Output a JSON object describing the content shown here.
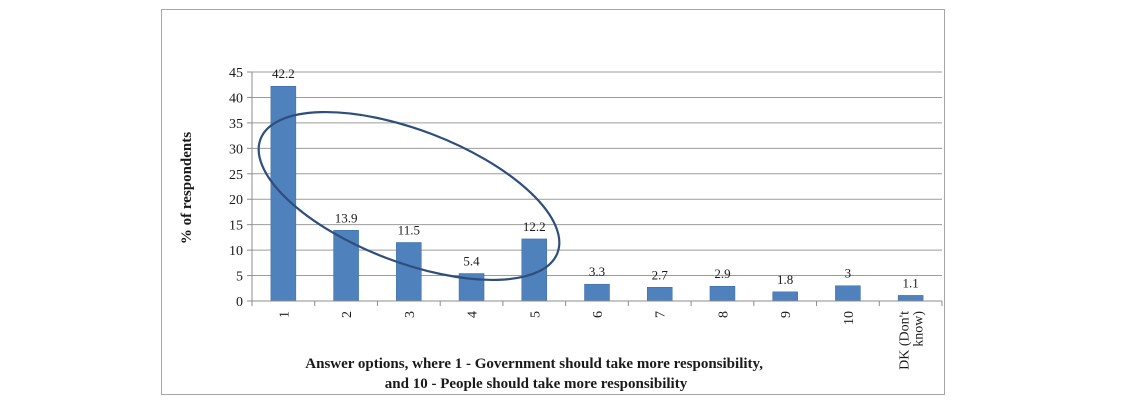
{
  "chart_data": {
    "type": "bar",
    "categories": [
      "1",
      "2",
      "3",
      "4",
      "5",
      "6",
      "7",
      "8",
      "9",
      "10",
      "DK (Don't know)"
    ],
    "category_label_lines": [
      [
        "1"
      ],
      [
        "2"
      ],
      [
        "3"
      ],
      [
        "4"
      ],
      [
        "5"
      ],
      [
        "6"
      ],
      [
        "7"
      ],
      [
        "8"
      ],
      [
        "9"
      ],
      [
        "10"
      ],
      [
        "DK (Don't",
        "know)"
      ]
    ],
    "values": [
      42.2,
      13.9,
      11.5,
      5.4,
      12.2,
      3.3,
      2.7,
      2.9,
      1.8,
      3,
      1.1
    ],
    "data_labels": [
      "42.2",
      "13.9",
      "11.5",
      "5.4",
      "12.2",
      "3.3",
      "2.7",
      "2.9",
      "1.8",
      "3",
      "1.1"
    ],
    "title": "",
    "ylabel": "% of respondents",
    "xlabel_lines": [
      "Answer options, where 1 - Government should take more responsibility,",
      "and 10 - People should take more responsibility"
    ],
    "ylim": [
      0,
      45
    ],
    "yticks": [
      0,
      5,
      10,
      15,
      20,
      25,
      30,
      35,
      40,
      45
    ],
    "grid": true,
    "legend": "none",
    "annotation": {
      "shape": "ellipse",
      "encircles_categories": [
        "1",
        "2",
        "3",
        "4",
        "5"
      ]
    },
    "colors": {
      "bar": "#4f81bd",
      "bar_edge": "#3a6aa6",
      "grid": "#9c9c9c",
      "axis": "#8c8c8c",
      "ellipse": "#2e4e7e"
    }
  }
}
